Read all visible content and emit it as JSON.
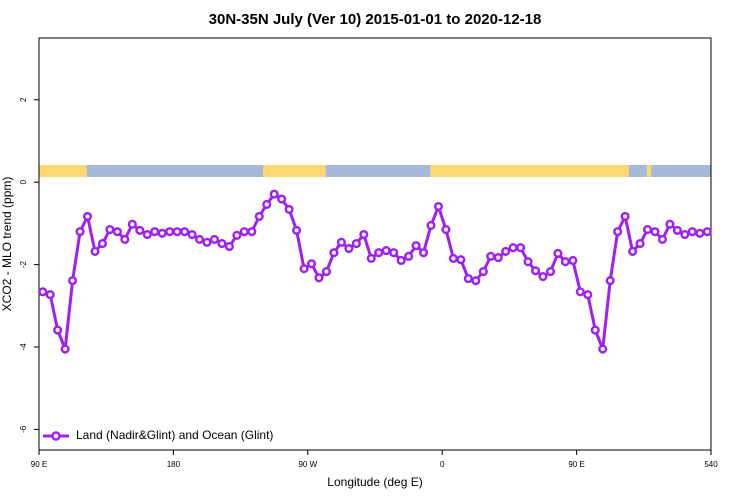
{
  "chart_data": {
    "type": "line",
    "title": "30N-35N July (Ver 10)   2015-01-01 to 2020-12-18",
    "x_label": "Longitude (deg E)",
    "y_label": "XCO2 - MLO trend (ppm)",
    "xlim": [
      90,
      540
    ],
    "ylim": [
      -6.5,
      3.5
    ],
    "xticks": [
      {
        "value": 90,
        "label": "90 E"
      },
      180,
      {
        "value": 270,
        "label": "90 W"
      },
      {
        "value": 360,
        "label": "0"
      },
      {
        "value": 450,
        "label": "90 E"
      },
      540
    ],
    "yticks": [
      -6,
      -4,
      -2,
      0,
      2
    ],
    "legend": "bottomleft",
    "land_color": "#fbd872",
    "ocean_color": "#a6b9d9",
    "land": [
      [
        90,
        122
      ],
      [
        240,
        282
      ],
      [
        352,
        485
      ],
      [
        497,
        500
      ]
    ],
    "x": [
      92.5,
      97.5,
      102.5,
      107.5,
      112.5,
      117.5,
      122.5,
      127.5,
      132.5,
      137.5,
      142.5,
      147.5,
      152.5,
      157.5,
      162.5,
      167.5,
      172.5,
      177.5,
      182.5,
      187.5,
      192.5,
      197.5,
      202.5,
      207.5,
      212.5,
      217.5,
      222.5,
      227.5,
      232.5,
      237.5,
      242.5,
      247.5,
      252.5,
      257.5,
      262.5,
      267.5,
      272.5,
      277.5,
      282.5,
      287.5,
      292.5,
      297.5,
      302.5,
      307.5,
      312.5,
      317.5,
      322.5,
      327.5,
      332.5,
      337.5,
      342.5,
      347.5,
      352.5,
      357.5,
      362.5,
      367.5,
      372.5,
      377.5,
      382.5,
      387.5,
      392.5,
      397.5,
      402.5,
      407.5,
      412.5,
      417.5,
      422.5,
      427.5,
      432.5,
      437.5,
      442.5,
      447.5,
      452.5,
      457.5,
      462.5,
      467.5,
      472.5,
      477.5,
      482.5,
      487.5,
      492.5,
      497.5,
      502.5,
      507.5,
      512.5,
      517.5,
      522.5,
      527.5,
      532.5,
      537.5
    ],
    "series": [
      {
        "name": "Land (Nadir&Glint) and Ocean (Glint)",
        "color": "#a020f0",
        "values": [
          -2.66,
          -2.73,
          -3.59,
          -4.05,
          -2.39,
          -1.2,
          -0.83,
          -1.68,
          -1.49,
          -1.15,
          -1.2,
          -1.39,
          -1.02,
          -1.17,
          -1.27,
          -1.2,
          -1.24,
          -1.2,
          -1.2,
          -1.2,
          -1.27,
          -1.39,
          -1.46,
          -1.39,
          -1.49,
          -1.56,
          -1.29,
          -1.2,
          -1.2,
          -0.83,
          -0.54,
          -0.29,
          -0.41,
          -0.66,
          -1.17,
          -2.1,
          -1.98,
          -2.32,
          -2.17,
          -1.71,
          -1.46,
          -1.61,
          -1.49,
          -1.27,
          -1.85,
          -1.71,
          -1.66,
          -1.71,
          -1.9,
          -1.8,
          -1.54,
          -1.71,
          -1.05,
          -0.59,
          -1.15,
          -1.85,
          -1.88,
          -2.34,
          -2.39,
          -2.17,
          -1.8,
          -1.83,
          -1.68,
          -1.59,
          -1.59,
          -1.93,
          -2.15,
          -2.29,
          -2.17,
          -1.73,
          -1.93,
          -1.9,
          -2.66,
          -2.73,
          -3.59,
          -4.05,
          -2.39,
          -1.2,
          -0.83,
          -1.68,
          -1.49,
          -1.15,
          -1.2,
          -1.39,
          -1.02,
          -1.17,
          -1.27,
          -1.2,
          -1.24,
          -1.2
        ]
      }
    ]
  }
}
